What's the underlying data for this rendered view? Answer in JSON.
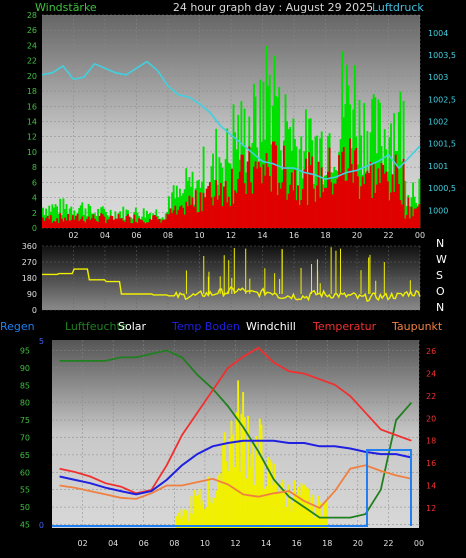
{
  "header": {
    "left": "Windstärke",
    "center": "24 hour graph day : August 29 2025",
    "right": "Luftdruck"
  },
  "colors": {
    "wind_gust": "#00e000",
    "wind_avg": "#e00000",
    "pressure": "#40d0e0",
    "winddir": "#f0f000",
    "humidity": "#208020",
    "solar": "#f0f000",
    "soil_temp": "#2020e0",
    "windchill": "#ffffff",
    "temperature": "#f03030",
    "dewpoint": "#f08040",
    "rain": "#2080f0",
    "axis_left": "#40c040",
    "axis_right_pressure": "#40d0e0",
    "axis_right_temp": "#f03030",
    "axis_left_bottom": "#4060f0"
  },
  "chart_data": [
    {
      "type": "bar",
      "name": "wind",
      "x_ticks": [
        "02",
        "04",
        "06",
        "08",
        "10",
        "12",
        "14",
        "16",
        "18",
        "20",
        "22",
        "00"
      ],
      "y_left_ticks": [
        "0",
        "2",
        "4",
        "6",
        "8",
        "10",
        "12",
        "14",
        "16",
        "18",
        "20",
        "22",
        "24",
        "26",
        "28"
      ],
      "y_left_range": [
        0,
        28
      ],
      "y_right_ticks": [
        "1000",
        "1000,5",
        "1001",
        "1001,5",
        "1002",
        "1002,5",
        "1003",
        "1003,5",
        "1004"
      ],
      "y_right_range": [
        999.6,
        1004.4
      ],
      "gust_hourly_max": [
        4,
        4,
        4,
        3,
        3,
        3,
        3,
        3,
        6,
        8,
        11,
        14,
        18,
        20,
        27,
        20,
        16,
        16,
        18,
        25,
        20,
        18,
        20,
        8
      ],
      "avg_hourly_max": [
        2,
        2,
        2,
        2,
        2,
        2,
        2,
        2,
        3,
        5,
        7,
        9,
        10,
        11,
        12,
        11,
        10,
        10,
        11,
        13,
        11,
        10,
        10,
        4
      ],
      "pressure": [
        1003.05,
        1003.1,
        1003.25,
        1002.95,
        1003.0,
        1003.3,
        1003.2,
        1003.1,
        1003.05,
        1003.2,
        1003.35,
        1003.15,
        1002.8,
        1002.6,
        1002.55,
        1002.4,
        1002.2,
        1001.9,
        1001.7,
        1001.5,
        1001.3,
        1001.1,
        1001.05,
        1000.95,
        1000.95,
        1000.85,
        1000.8,
        1000.7,
        1000.75,
        1000.85,
        1000.9,
        1001.0,
        1001.1,
        1001.25,
        1000.95,
        1001.2,
        1001.45
      ]
    },
    {
      "type": "line",
      "name": "winddir",
      "y_ticks": [
        "0",
        "90",
        "180",
        "270",
        "360"
      ],
      "y_range": [
        0,
        360
      ],
      "right_labels": [
        "N",
        "W",
        "S",
        "O",
        "N"
      ],
      "hourly": [
        200,
        205,
        230,
        170,
        160,
        90,
        90,
        85,
        80,
        80,
        90,
        100,
        110,
        95,
        100,
        80,
        75,
        90,
        85,
        80,
        70,
        75,
        80,
        95
      ]
    },
    {
      "type": "line",
      "name": "climate",
      "legend": [
        "Regen",
        "Luftfeuchte",
        "Solar",
        "Temp Boden",
        "Windchill",
        "Temperatur",
        "Taupunkt"
      ],
      "x_ticks": [
        "02",
        "04",
        "06",
        "08",
        "10",
        "12",
        "14",
        "16",
        "18",
        "20",
        "22",
        "00"
      ],
      "y_left_ticks": [
        "45",
        "50",
        "55",
        "60",
        "65",
        "70",
        "75",
        "80",
        "85",
        "90",
        "95"
      ],
      "y_left_range": [
        44,
        98
      ],
      "y_right_ticks": [
        "12",
        "14",
        "16",
        "18",
        "20",
        "22",
        "24",
        "26"
      ],
      "y_right_range": [
        10.2,
        27
      ],
      "y_left_bottom_ticks": [
        "0",
        "5"
      ],
      "humidity": [
        92,
        92,
        92,
        92,
        93,
        93,
        94,
        95,
        93,
        88,
        84,
        79,
        73,
        66,
        58,
        53,
        50,
        47,
        47,
        47,
        48,
        55,
        75,
        80
      ],
      "temperature": [
        15.5,
        15.2,
        14.8,
        14.2,
        13.9,
        13.3,
        13.6,
        15.8,
        18.5,
        20.5,
        22.5,
        24.5,
        25.5,
        26.3,
        25.0,
        24.2,
        24.0,
        23.5,
        23.0,
        22.0,
        20.5,
        19.0,
        18.5,
        18.0
      ],
      "soil_temp": [
        14.8,
        14.5,
        14.2,
        13.8,
        13.5,
        13.2,
        13.5,
        14.5,
        15.8,
        16.8,
        17.5,
        17.8,
        18.0,
        18.0,
        18.0,
        17.8,
        17.8,
        17.5,
        17.5,
        17.3,
        17.0,
        16.8,
        16.8,
        16.5
      ],
      "dewpoint": [
        14.0,
        13.8,
        13.5,
        13.2,
        12.9,
        12.8,
        13.3,
        14.0,
        14.0,
        14.3,
        14.6,
        14.1,
        13.2,
        13.0,
        13.3,
        13.5,
        12.6,
        12.0,
        13.5,
        15.5,
        15.8,
        15.3,
        14.9,
        14.6
      ],
      "solar_hourly": [
        0,
        0,
        0,
        0,
        0,
        0,
        0,
        0,
        10,
        22,
        30,
        75,
        82,
        60,
        40,
        28,
        25,
        18,
        0,
        0,
        0,
        0,
        0,
        0
      ]
    }
  ]
}
